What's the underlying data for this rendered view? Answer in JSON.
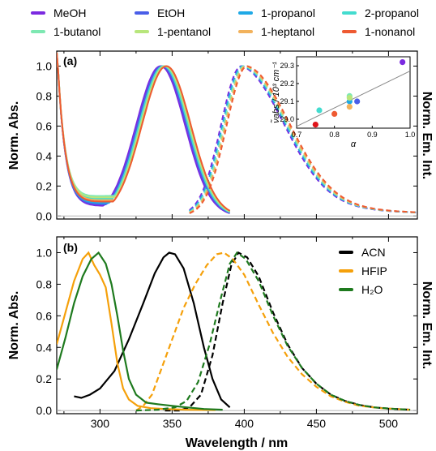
{
  "legend_top": {
    "entries": [
      {
        "label": "MeOH",
        "color": "#7b2ae0"
      },
      {
        "label": "EtOH",
        "color": "#4a5ee8"
      },
      {
        "label": "1-propanol",
        "color": "#1fa9e6"
      },
      {
        "label": "2-propanol",
        "color": "#43dccf"
      },
      {
        "label": "1-butanol",
        "color": "#7ee8b2"
      },
      {
        "label": "1-pentanol",
        "color": "#b8e67c"
      },
      {
        "label": "1-heptanol",
        "color": "#f2b25c"
      },
      {
        "label": "1-nonanol",
        "color": "#ee5a32"
      }
    ]
  },
  "chart_data": [
    {
      "panel": "(a)",
      "type": "line",
      "xlabel": "Wavelength / nm",
      "ylabel_left": "Norm. Abs.",
      "ylabel_right": "Norm. Em. Int.",
      "xlim": [
        270,
        520
      ],
      "ylim": [
        -0.02,
        1.1
      ],
      "xticks": [
        300,
        350,
        400,
        450,
        500
      ],
      "yticks": [
        "0.0",
        "0.2",
        "0.4",
        "0.6",
        "0.8",
        "1.0"
      ],
      "series": [
        {
          "name": "MeOH",
          "color": "#7b2ae0",
          "abs_peak": 342,
          "abs_min": 0.07,
          "em_peak": 398,
          "em_edge": 7.5
        },
        {
          "name": "EtOH",
          "color": "#4a5ee8",
          "abs_peak": 343,
          "abs_min": 0.08,
          "em_peak": 399,
          "em_edge": 7.3
        },
        {
          "name": "1-propanol",
          "color": "#1fa9e6",
          "abs_peak": 344,
          "abs_min": 0.09,
          "em_peak": 399,
          "em_edge": 7.1
        },
        {
          "name": "2-propanol",
          "color": "#43dccf",
          "abs_peak": 344,
          "abs_min": 0.12,
          "em_peak": 400,
          "em_edge": 7.0
        },
        {
          "name": "1-butanol",
          "color": "#7ee8b2",
          "abs_peak": 345,
          "abs_min": 0.14,
          "em_peak": 400,
          "em_edge": 6.9
        },
        {
          "name": "1-pentanol",
          "color": "#b8e67c",
          "abs_peak": 345,
          "abs_min": 0.13,
          "em_peak": 401,
          "em_edge": 6.8
        },
        {
          "name": "1-heptanol",
          "color": "#f2b25c",
          "abs_peak": 346,
          "abs_min": 0.11,
          "em_peak": 401,
          "em_edge": 6.7
        },
        {
          "name": "1-nonanol",
          "color": "#ee5a32",
          "abs_peak": 346,
          "abs_min": 0.1,
          "em_peak": 402,
          "em_edge": 6.6
        }
      ]
    },
    {
      "panel": "inset",
      "type": "scatter",
      "xlabel": "α",
      "ylabel": "ν̃abs / 10³ cm⁻¹",
      "xlim": [
        0.7,
        1.0
      ],
      "ylim": [
        28.95,
        29.35
      ],
      "xticks": [
        "0.7",
        "0.8",
        "0.9",
        "1.0"
      ],
      "yticks": [
        "29.0",
        "29.1",
        "29.2",
        "29.3"
      ],
      "fit": {
        "x": [
          0.7,
          1.0
        ],
        "y": [
          28.96,
          29.27
        ]
      },
      "points": [
        {
          "name": "MeOH",
          "x": 0.98,
          "y": 29.32,
          "color": "#7b2ae0"
        },
        {
          "name": "EtOH",
          "x": 0.86,
          "y": 29.1,
          "color": "#4a5ee8"
        },
        {
          "name": "1-propanol",
          "x": 0.84,
          "y": 29.1,
          "color": "#1fa9e6"
        },
        {
          "name": "2-propanol",
          "x": 0.76,
          "y": 29.05,
          "color": "#43dccf"
        },
        {
          "name": "1-butanol",
          "x": 0.84,
          "y": 29.13,
          "color": "#7ee8b2"
        },
        {
          "name": "1-pentanol",
          "x": 0.84,
          "y": 29.12,
          "color": "#b8e67c"
        },
        {
          "name": "1-heptanol",
          "x": 0.84,
          "y": 29.07,
          "color": "#f2b25c"
        },
        {
          "name": "1-nonanol",
          "x": 0.8,
          "y": 29.03,
          "color": "#ee5a32"
        },
        {
          "name": "",
          "x": 0.75,
          "y": 28.97,
          "color": "#e0151b"
        }
      ]
    },
    {
      "panel": "(b)",
      "type": "line",
      "xlabel": "Wavelength / nm",
      "ylabel_left": "Norm. Abs.",
      "ylabel_right": "Norm. Em. Int.",
      "xlim": [
        270,
        520
      ],
      "ylim": [
        -0.02,
        1.1
      ],
      "xticks": [
        300,
        350,
        400,
        450,
        500
      ],
      "yticks": [
        "0.0",
        "0.2",
        "0.4",
        "0.6",
        "0.8",
        "1.0"
      ],
      "series": [
        {
          "name": "ACN",
          "color": "#000000",
          "abs": [
            [
              282,
              0.09
            ],
            [
              287,
              0.08
            ],
            [
              293,
              0.1
            ],
            [
              300,
              0.14
            ],
            [
              310,
              0.25
            ],
            [
              320,
              0.45
            ],
            [
              330,
              0.68
            ],
            [
              338,
              0.87
            ],
            [
              344,
              0.97
            ],
            [
              348,
              1.0
            ],
            [
              352,
              0.99
            ],
            [
              358,
              0.9
            ],
            [
              365,
              0.68
            ],
            [
              372,
              0.4
            ],
            [
              378,
              0.2
            ],
            [
              384,
              0.07
            ],
            [
              390,
              0.02
            ]
          ],
          "em": [
            [
              345,
              0.0
            ],
            [
              355,
              0.0
            ],
            [
              362,
              0.02
            ],
            [
              370,
              0.1
            ],
            [
              378,
              0.35
            ],
            [
              385,
              0.68
            ],
            [
              391,
              0.92
            ],
            [
              396,
              1.0
            ],
            [
              402,
              0.97
            ],
            [
              410,
              0.85
            ],
            [
              420,
              0.62
            ],
            [
              430,
              0.42
            ],
            [
              440,
              0.27
            ],
            [
              450,
              0.17
            ],
            [
              460,
              0.1
            ],
            [
              470,
              0.06
            ],
            [
              480,
              0.035
            ],
            [
              490,
              0.02
            ],
            [
              500,
              0.012
            ],
            [
              515,
              0.005
            ]
          ]
        },
        {
          "name": "HFIP",
          "color": "#f5a00a",
          "abs": [
            [
              270,
              0.42
            ],
            [
              276,
              0.62
            ],
            [
              282,
              0.82
            ],
            [
              288,
              0.96
            ],
            [
              292,
              1.0
            ],
            [
              296,
              0.92
            ],
            [
              300,
              0.86
            ],
            [
              304,
              0.78
            ],
            [
              308,
              0.55
            ],
            [
              312,
              0.3
            ],
            [
              316,
              0.14
            ],
            [
              320,
              0.07
            ],
            [
              326,
              0.03
            ],
            [
              335,
              0.015
            ],
            [
              345,
              0.01
            ],
            [
              360,
              0.005
            ],
            [
              380,
              0.003
            ]
          ],
          "em": [
            [
              325,
              0.0
            ],
            [
              330,
              0.03
            ],
            [
              336,
              0.1
            ],
            [
              342,
              0.25
            ],
            [
              350,
              0.45
            ],
            [
              358,
              0.65
            ],
            [
              366,
              0.8
            ],
            [
              374,
              0.92
            ],
            [
              381,
              0.99
            ],
            [
              386,
              1.0
            ],
            [
              392,
              0.96
            ],
            [
              400,
              0.86
            ],
            [
              410,
              0.67
            ],
            [
              420,
              0.49
            ],
            [
              430,
              0.34
            ],
            [
              440,
              0.23
            ],
            [
              450,
              0.15
            ],
            [
              460,
              0.09
            ],
            [
              470,
              0.055
            ],
            [
              480,
              0.03
            ],
            [
              495,
              0.015
            ],
            [
              515,
              0.005
            ]
          ]
        },
        {
          "name": "H₂O",
          "color": "#1e7a1e",
          "abs": [
            [
              270,
              0.26
            ],
            [
              276,
              0.46
            ],
            [
              282,
              0.68
            ],
            [
              288,
              0.85
            ],
            [
              294,
              0.96
            ],
            [
              299,
              1.0
            ],
            [
              304,
              0.93
            ],
            [
              308,
              0.8
            ],
            [
              312,
              0.6
            ],
            [
              316,
              0.38
            ],
            [
              320,
              0.2
            ],
            [
              325,
              0.1
            ],
            [
              332,
              0.05
            ],
            [
              340,
              0.04
            ],
            [
              350,
              0.03
            ],
            [
              360,
              0.02
            ],
            [
              372,
              0.01
            ],
            [
              385,
              0.005
            ]
          ],
          "em": [
            [
              325,
              0.0
            ],
            [
              340,
              0.005
            ],
            [
              352,
              0.02
            ],
            [
              360,
              0.06
            ],
            [
              368,
              0.18
            ],
            [
              376,
              0.42
            ],
            [
              384,
              0.72
            ],
            [
              390,
              0.93
            ],
            [
              395,
              1.0
            ],
            [
              401,
              0.96
            ],
            [
              410,
              0.82
            ],
            [
              420,
              0.6
            ],
            [
              430,
              0.41
            ],
            [
              440,
              0.27
            ],
            [
              450,
              0.17
            ],
            [
              460,
              0.1
            ],
            [
              470,
              0.06
            ],
            [
              480,
              0.035
            ],
            [
              490,
              0.02
            ],
            [
              505,
              0.01
            ],
            [
              515,
              0.005
            ]
          ]
        }
      ]
    }
  ]
}
